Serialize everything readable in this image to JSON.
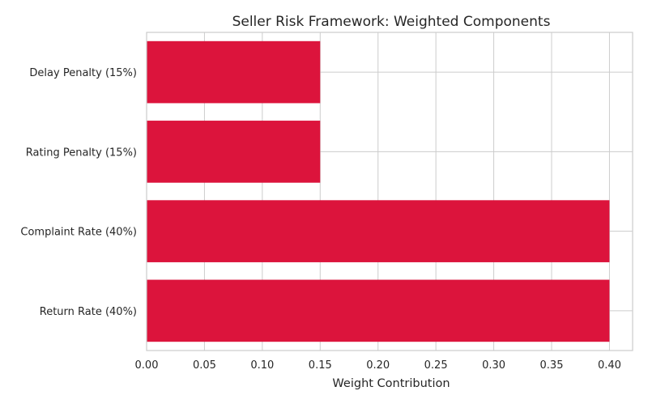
{
  "chart_data": {
    "type": "bar",
    "orientation": "horizontal",
    "title": "Seller Risk Framework: Weighted Components",
    "xlabel": "Weight Contribution",
    "ylabel": "",
    "categories": [
      "Return Rate (40%)",
      "Complaint Rate (40%)",
      "Rating Penalty (15%)",
      "Delay Penalty (15%)"
    ],
    "values": [
      0.4,
      0.4,
      0.15,
      0.15
    ],
    "xlim": [
      0.0,
      0.42
    ],
    "xticks": [
      0.0,
      0.05,
      0.1,
      0.15,
      0.2,
      0.25,
      0.3,
      0.35,
      0.4
    ],
    "xtick_labels": [
      "0.00",
      "0.05",
      "0.10",
      "0.15",
      "0.20",
      "0.25",
      "0.30",
      "0.35",
      "0.40"
    ],
    "grid": true,
    "bar_color": "#dc143c",
    "grid_color": "#cccccc"
  }
}
